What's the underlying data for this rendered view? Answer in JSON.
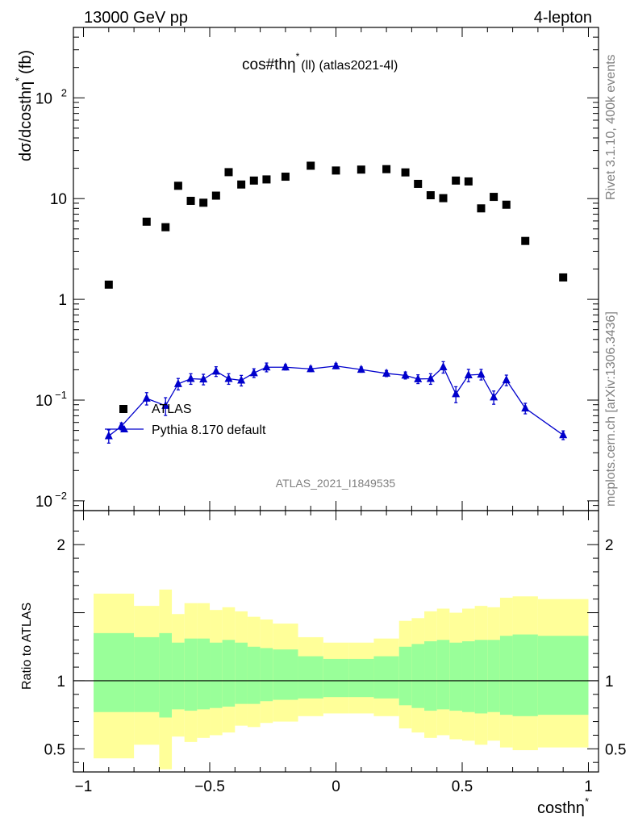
{
  "header": {
    "left": "13000 GeV pp",
    "right": "4-lepton"
  },
  "side_text": {
    "rivet": "Rivet 3.1.10,  400k events",
    "mcplots": "mcplots.cern.ch [arXiv:1306.3436]"
  },
  "chart_data": {
    "type": "scatter",
    "title_main": "cos#th",
    "title_eta": "η",
    "title_sup": "*",
    "title_rest": "(ll) (atlas2021-4l)",
    "ylabel_main": "dσ/dcosthη",
    "ylabel_sup": "*",
    "ylabel_unit": "(fb)",
    "xlabel_main": "costhη",
    "xlabel_sup": "*",
    "ratio_ylabel": "Ratio to ATLAS",
    "analysis_id": "ATLAS_2021_I1849535",
    "xlim": [
      -1.04,
      1.04
    ],
    "ylim_log": [
      0.008,
      500
    ],
    "ratio_ylim": [
      0.33,
      2.25
    ],
    "x_ticks": [
      {
        "v": -1,
        "label": "−1"
      },
      {
        "v": -0.5,
        "label": "−0.5"
      },
      {
        "v": 0,
        "label": "0"
      },
      {
        "v": 0.5,
        "label": "0.5"
      },
      {
        "v": 1,
        "label": "1"
      }
    ],
    "y_ticks": [
      {
        "v": 100,
        "base": "10",
        "exp": "2"
      },
      {
        "v": 10,
        "base": "10",
        "exp": ""
      },
      {
        "v": 1,
        "base": "1",
        "exp": ""
      },
      {
        "v": 0.1,
        "base": "10",
        "exp": "−1"
      },
      {
        "v": 0.01,
        "base": "10",
        "exp": "−2"
      }
    ],
    "ratio_ticks": [
      {
        "v": 2,
        "label": "2"
      },
      {
        "v": 1,
        "label": "1"
      },
      {
        "v": 0.5,
        "label": "0.5"
      }
    ],
    "legend": [
      {
        "name": "ATLAS",
        "marker": "square",
        "color": "#000000"
      },
      {
        "name": "Pythia 8.170 default",
        "marker": "triangle",
        "color": "#0000cc"
      }
    ],
    "atlas": {
      "x": [
        -0.9,
        -0.75,
        -0.675,
        -0.625,
        -0.575,
        -0.525,
        -0.475,
        -0.425,
        -0.375,
        -0.325,
        -0.275,
        -0.2,
        -0.1,
        0.0,
        0.1,
        0.2,
        0.275,
        0.325,
        0.375,
        0.425,
        0.475,
        0.525,
        0.575,
        0.625,
        0.675,
        0.75,
        0.9
      ],
      "y": [
        1.4,
        5.9,
        5.2,
        13.4,
        9.5,
        9.1,
        10.7,
        18.3,
        13.8,
        15.1,
        15.5,
        16.5,
        21.2,
        19.0,
        19.4,
        19.6,
        18.2,
        14.0,
        10.8,
        10.1,
        15.1,
        14.8,
        8.0,
        10.4,
        8.7,
        3.8,
        1.65
      ]
    },
    "pythia": {
      "x": [
        -0.9,
        -0.85,
        -0.75,
        -0.675,
        -0.625,
        -0.575,
        -0.525,
        -0.475,
        -0.425,
        -0.375,
        -0.325,
        -0.275,
        -0.2,
        -0.1,
        0.0,
        0.1,
        0.2,
        0.275,
        0.325,
        0.375,
        0.425,
        0.475,
        0.525,
        0.575,
        0.625,
        0.675,
        0.75,
        0.9
      ],
      "y": [
        0.044,
        0.055,
        0.104,
        0.088,
        0.145,
        0.163,
        0.161,
        0.193,
        0.163,
        0.157,
        0.186,
        0.212,
        0.212,
        0.204,
        0.218,
        0.201,
        0.184,
        0.176,
        0.162,
        0.163,
        0.213,
        0.115,
        0.177,
        0.18,
        0.107,
        0.158,
        0.083,
        0.045
      ],
      "err": [
        0.15,
        0.08,
        0.14,
        0.2,
        0.13,
        0.12,
        0.12,
        0.11,
        0.12,
        0.12,
        0.1,
        0.1,
        0.06,
        0.06,
        0.06,
        0.06,
        0.07,
        0.08,
        0.1,
        0.12,
        0.13,
        0.18,
        0.14,
        0.12,
        0.15,
        0.12,
        0.12,
        0.1
      ]
    },
    "ratio_bands": {
      "edges": [
        -0.96,
        -0.8,
        -0.7,
        -0.65,
        -0.6,
        -0.55,
        -0.5,
        -0.45,
        -0.4,
        -0.35,
        -0.3,
        -0.25,
        -0.15,
        -0.05,
        0.05,
        0.15,
        0.25,
        0.3,
        0.35,
        0.4,
        0.45,
        0.5,
        0.55,
        0.6,
        0.65,
        0.7,
        0.8,
        1.0
      ],
      "yellow_hi": [
        1.64,
        1.55,
        1.67,
        1.49,
        1.57,
        1.57,
        1.52,
        1.54,
        1.51,
        1.47,
        1.45,
        1.42,
        1.32,
        1.28,
        1.28,
        1.31,
        1.44,
        1.46,
        1.51,
        1.53,
        1.5,
        1.53,
        1.55,
        1.54,
        1.61,
        1.62,
        1.6
      ],
      "yellow_lo": [
        0.43,
        0.53,
        0.35,
        0.59,
        0.55,
        0.58,
        0.6,
        0.62,
        0.67,
        0.66,
        0.69,
        0.7,
        0.74,
        0.76,
        0.76,
        0.74,
        0.65,
        0.62,
        0.58,
        0.6,
        0.57,
        0.56,
        0.53,
        0.56,
        0.51,
        0.49,
        0.51
      ],
      "green_hi": [
        1.35,
        1.32,
        1.35,
        1.28,
        1.31,
        1.31,
        1.28,
        1.3,
        1.28,
        1.25,
        1.24,
        1.23,
        1.18,
        1.16,
        1.16,
        1.18,
        1.25,
        1.27,
        1.29,
        1.3,
        1.28,
        1.29,
        1.3,
        1.3,
        1.33,
        1.34,
        1.33
      ],
      "green_lo": [
        0.77,
        0.77,
        0.73,
        0.79,
        0.78,
        0.79,
        0.8,
        0.81,
        0.83,
        0.83,
        0.85,
        0.86,
        0.87,
        0.88,
        0.88,
        0.87,
        0.82,
        0.8,
        0.78,
        0.79,
        0.78,
        0.77,
        0.76,
        0.77,
        0.75,
        0.74,
        0.75
      ]
    },
    "colors": {
      "atlas": "#000000",
      "pythia": "#0000cc",
      "band_yellow": "#ffff99",
      "band_green": "#99ff99",
      "gray_text": "#808080"
    }
  }
}
